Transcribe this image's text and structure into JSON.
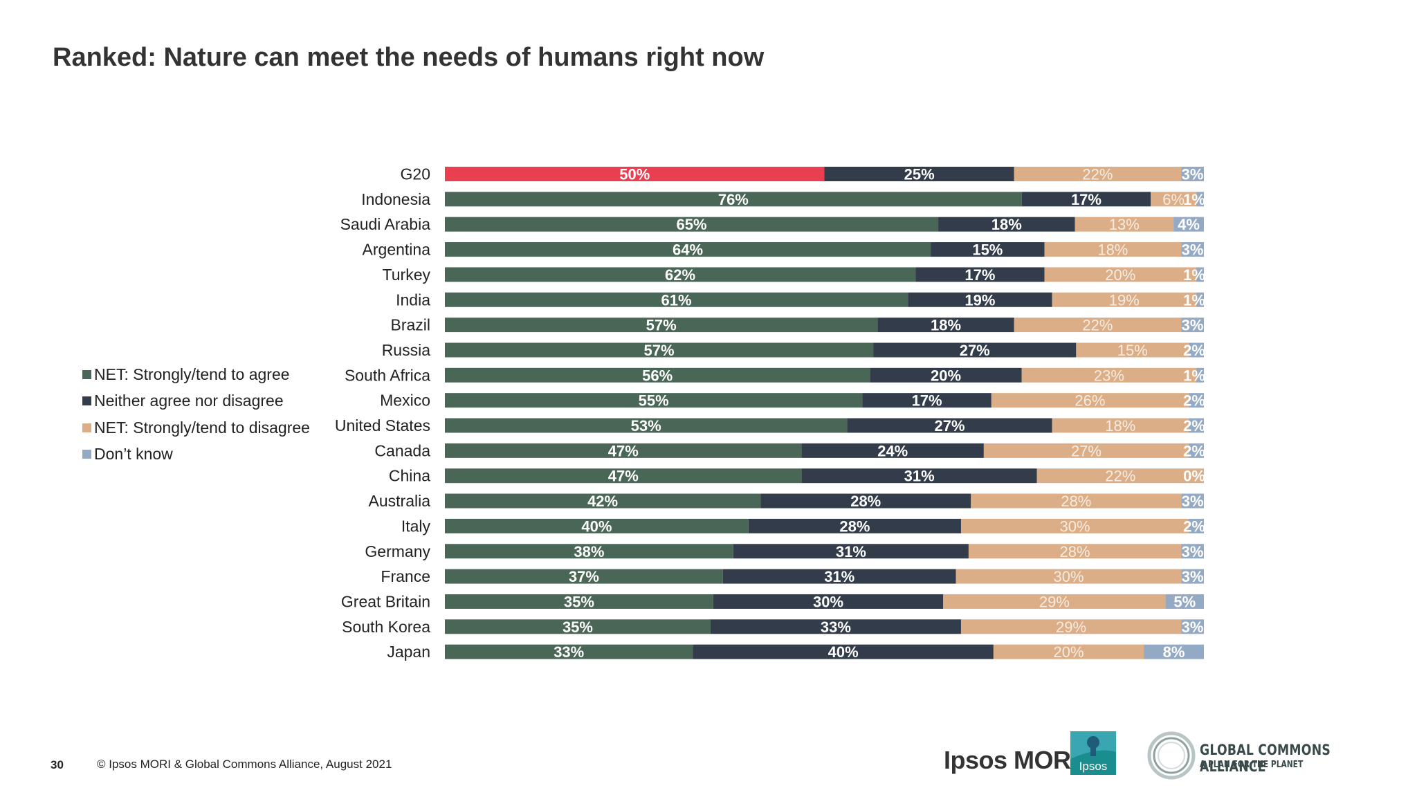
{
  "title": "Ranked: Nature can meet the needs of humans right now",
  "legend": [
    {
      "label": "NET: Strongly/tend to agree",
      "color": "#4a6657"
    },
    {
      "label": "Neither agree nor disagree",
      "color": "#333c4a"
    },
    {
      "label": "NET: Strongly/tend to disagree",
      "color": "#dcae87"
    },
    {
      "label": "Don’t know",
      "color": "#93a9c4"
    }
  ],
  "colors": {
    "agree": "#4a6657",
    "neither": "#333c4a",
    "disagree": "#dcae87",
    "dontknow": "#93a9c4",
    "g20_highlight": "#ea3f51"
  },
  "chart_data": {
    "type": "bar",
    "orientation": "horizontal-stacked",
    "categories": [
      "G20",
      "Indonesia",
      "Saudi Arabia",
      "Argentina",
      "Turkey",
      "India",
      "Brazil",
      "Russia",
      "South Africa",
      "Mexico",
      "United States",
      "Canada",
      "China",
      "Australia",
      "Italy",
      "Germany",
      "France",
      "Great Britain",
      "South Korea",
      "Japan"
    ],
    "series": [
      {
        "name": "NET: Strongly/tend to agree",
        "values": [
          50,
          76,
          65,
          64,
          62,
          61,
          57,
          57,
          56,
          55,
          53,
          47,
          47,
          42,
          40,
          38,
          37,
          35,
          35,
          33
        ]
      },
      {
        "name": "Neither agree nor disagree",
        "values": [
          25,
          17,
          18,
          15,
          17,
          19,
          18,
          27,
          20,
          17,
          27,
          24,
          31,
          28,
          28,
          31,
          31,
          30,
          33,
          40
        ]
      },
      {
        "name": "NET: Strongly/tend to disagree",
        "values": [
          22,
          6,
          13,
          18,
          20,
          19,
          22,
          15,
          23,
          26,
          18,
          27,
          22,
          28,
          30,
          28,
          30,
          29,
          29,
          20
        ]
      },
      {
        "name": "Don’t know",
        "values": [
          3,
          1,
          4,
          3,
          1,
          1,
          3,
          2,
          1,
          2,
          2,
          2,
          0,
          3,
          2,
          3,
          3,
          5,
          3,
          8
        ]
      }
    ],
    "value_labels": [
      [
        "50%",
        "25%",
        "22%",
        "3%"
      ],
      [
        "76%",
        "17%",
        "6%",
        "1%"
      ],
      [
        "65%",
        "18%",
        "13%",
        "4%"
      ],
      [
        "64%",
        "15%",
        "18%",
        "3%"
      ],
      [
        "62%",
        "17%",
        "20%",
        "1%"
      ],
      [
        "61%",
        "19%",
        "19%",
        "1%"
      ],
      [
        "57%",
        "18%",
        "22%",
        "3%"
      ],
      [
        "57%",
        "27%",
        "15%",
        "2%"
      ],
      [
        "56%",
        "20%",
        "23%",
        "1%"
      ],
      [
        "55%",
        "17%",
        "26%",
        "2%"
      ],
      [
        "53%",
        "27%",
        "18%",
        "2%"
      ],
      [
        "47%",
        "24%",
        "27%",
        "2%"
      ],
      [
        "47%",
        "31%",
        "22%",
        "0%"
      ],
      [
        "42%",
        "28%",
        "28%",
        "3%"
      ],
      [
        "40%",
        "28%",
        "30%",
        "2%"
      ],
      [
        "38%",
        "31%",
        "28%",
        "3%"
      ],
      [
        "37%",
        "31%",
        "30%",
        "3%"
      ],
      [
        "35%",
        "30%",
        "29%",
        "5%"
      ],
      [
        "35%",
        "33%",
        "29%",
        "3%"
      ],
      [
        "33%",
        "40%",
        "20%",
        "8%"
      ]
    ],
    "highlight_category": "G20",
    "xlim": [
      0,
      100
    ],
    "grid": false,
    "legend_position": "left"
  },
  "footer": {
    "page_number": "30",
    "copyright": "© Ipsos MORI & Global Commons Alliance, August 2021"
  },
  "logos": {
    "ipsos_text": "Ipsos MORI",
    "ipsos_badge": "Ipsos",
    "gca_name": "GLOBAL COMMONS ALLIANCE",
    "gca_tagline": "A PLAN FOR THE PLANET"
  }
}
